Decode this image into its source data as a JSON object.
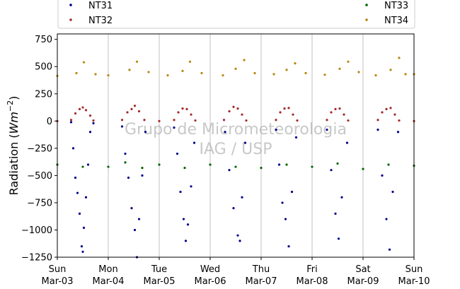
{
  "chart_data": {
    "type": "scatter",
    "title": "",
    "xlabel": "",
    "ylabel_prefix": "Radiation (",
    "ylabel_unit_base": "Wm",
    "ylabel_unit_exp": "−2",
    "ylabel_suffix": ")",
    "ylim": [
      -1250,
      800
    ],
    "yticks": [
      750,
      500,
      250,
      0,
      -250,
      -500,
      -750,
      -1000,
      -1250
    ],
    "ytick_labels": [
      "750",
      "500",
      "250",
      "0",
      "−250",
      "−500",
      "−750",
      "−1000",
      "−1250"
    ],
    "xlim": [
      "2019-03-03",
      "2019-03-10"
    ],
    "xticks": [
      {
        "day": "Sun",
        "date": "Mar-03"
      },
      {
        "day": "Mon",
        "date": "Mar-04"
      },
      {
        "day": "Tue",
        "date": "Mar-05"
      },
      {
        "day": "Wed",
        "date": "Mar-06"
      },
      {
        "day": "Thu",
        "date": "Mar-07"
      },
      {
        "day": "Fri",
        "date": "Mar-08"
      },
      {
        "day": "Sat",
        "date": "Mar-09"
      },
      {
        "day": "Sun",
        "date": "Mar-10"
      }
    ],
    "grid": "vertical",
    "legend_position": "top",
    "watermark": [
      "Grupo de Micrometeorologia",
      "IAG / USP"
    ],
    "series": [
      {
        "name": "NT31",
        "color": "#00008b",
        "points": [
          {
            "x": "2019-03-03T06:30",
            "y": -10
          },
          {
            "x": "2019-03-03T07:30",
            "y": -250
          },
          {
            "x": "2019-03-03T08:30",
            "y": -520
          },
          {
            "x": "2019-03-03T09:30",
            "y": -660
          },
          {
            "x": "2019-03-03T10:30",
            "y": -850
          },
          {
            "x": "2019-03-03T11:30",
            "y": -1150
          },
          {
            "x": "2019-03-03T12:00",
            "y": -1200
          },
          {
            "x": "2019-03-03T12:30",
            "y": -980
          },
          {
            "x": "2019-03-03T13:30",
            "y": -700
          },
          {
            "x": "2019-03-03T14:30",
            "y": -400
          },
          {
            "x": "2019-03-03T15:30",
            "y": -100
          },
          {
            "x": "2019-03-03T17:00",
            "y": -20
          },
          {
            "x": "2019-03-04T06:30",
            "y": -50
          },
          {
            "x": "2019-03-04T08:00",
            "y": -300
          },
          {
            "x": "2019-03-04T09:30",
            "y": -520
          },
          {
            "x": "2019-03-04T11:00",
            "y": -800
          },
          {
            "x": "2019-03-04T12:30",
            "y": -1000
          },
          {
            "x": "2019-03-04T13:30",
            "y": -1250
          },
          {
            "x": "2019-03-04T14:30",
            "y": -900
          },
          {
            "x": "2019-03-04T16:00",
            "y": -500
          },
          {
            "x": "2019-03-04T17:30",
            "y": -100
          },
          {
            "x": "2019-03-05T07:00",
            "y": -60
          },
          {
            "x": "2019-03-05T08:30",
            "y": -300
          },
          {
            "x": "2019-03-05T10:00",
            "y": -650
          },
          {
            "x": "2019-03-05T11:30",
            "y": -900
          },
          {
            "x": "2019-03-05T12:30",
            "y": -1100
          },
          {
            "x": "2019-03-05T13:30",
            "y": -950
          },
          {
            "x": "2019-03-05T15:00",
            "y": -600
          },
          {
            "x": "2019-03-05T16:30",
            "y": -200
          },
          {
            "x": "2019-03-06T07:00",
            "y": -100
          },
          {
            "x": "2019-03-06T09:00",
            "y": -450
          },
          {
            "x": "2019-03-06T11:00",
            "y": -800
          },
          {
            "x": "2019-03-06T13:00",
            "y": -1050
          },
          {
            "x": "2019-03-06T14:00",
            "y": -1100
          },
          {
            "x": "2019-03-06T15:00",
            "y": -700
          },
          {
            "x": "2019-03-06T16:30",
            "y": -200
          },
          {
            "x": "2019-03-07T07:00",
            "y": -80
          },
          {
            "x": "2019-03-07T08:30",
            "y": -400
          },
          {
            "x": "2019-03-07T10:00",
            "y": -750
          },
          {
            "x": "2019-03-07T11:30",
            "y": -900
          },
          {
            "x": "2019-03-07T13:00",
            "y": -1150
          },
          {
            "x": "2019-03-07T14:30",
            "y": -650
          },
          {
            "x": "2019-03-07T16:30",
            "y": -150
          },
          {
            "x": "2019-03-08T07:00",
            "y": -80
          },
          {
            "x": "2019-03-08T09:00",
            "y": -450
          },
          {
            "x": "2019-03-08T11:00",
            "y": -850
          },
          {
            "x": "2019-03-08T12:30",
            "y": -1080
          },
          {
            "x": "2019-03-08T14:00",
            "y": -700
          },
          {
            "x": "2019-03-08T16:30",
            "y": -200
          },
          {
            "x": "2019-03-09T07:00",
            "y": -80
          },
          {
            "x": "2019-03-09T09:00",
            "y": -500
          },
          {
            "x": "2019-03-09T11:00",
            "y": -900
          },
          {
            "x": "2019-03-09T12:30",
            "y": -1180
          },
          {
            "x": "2019-03-09T14:00",
            "y": -650
          },
          {
            "x": "2019-03-09T16:30",
            "y": -100
          }
        ]
      },
      {
        "name": "NT32",
        "color": "#a52a2a",
        "points": [
          {
            "x": "2019-03-03T00:00",
            "y": 0
          },
          {
            "x": "2019-03-03T06:30",
            "y": 10
          },
          {
            "x": "2019-03-03T08:30",
            "y": 70
          },
          {
            "x": "2019-03-03T10:30",
            "y": 110
          },
          {
            "x": "2019-03-03T12:00",
            "y": 125
          },
          {
            "x": "2019-03-03T13:30",
            "y": 100
          },
          {
            "x": "2019-03-03T15:30",
            "y": 50
          },
          {
            "x": "2019-03-03T17:00",
            "y": 5
          },
          {
            "x": "2019-03-04T06:30",
            "y": 10
          },
          {
            "x": "2019-03-04T09:00",
            "y": 80
          },
          {
            "x": "2019-03-04T11:00",
            "y": 110
          },
          {
            "x": "2019-03-04T12:30",
            "y": 140
          },
          {
            "x": "2019-03-04T14:30",
            "y": 90
          },
          {
            "x": "2019-03-04T17:00",
            "y": 10
          },
          {
            "x": "2019-03-05T00:00",
            "y": 0
          },
          {
            "x": "2019-03-05T07:00",
            "y": 10
          },
          {
            "x": "2019-03-05T09:00",
            "y": 80
          },
          {
            "x": "2019-03-05T11:00",
            "y": 115
          },
          {
            "x": "2019-03-05T13:00",
            "y": 110
          },
          {
            "x": "2019-03-05T15:00",
            "y": 60
          },
          {
            "x": "2019-03-05T17:00",
            "y": 5
          },
          {
            "x": "2019-03-06T06:30",
            "y": 10
          },
          {
            "x": "2019-03-06T09:00",
            "y": 90
          },
          {
            "x": "2019-03-06T11:00",
            "y": 130
          },
          {
            "x": "2019-03-06T13:00",
            "y": 115
          },
          {
            "x": "2019-03-06T15:00",
            "y": 60
          },
          {
            "x": "2019-03-06T17:00",
            "y": 5
          },
          {
            "x": "2019-03-07T07:00",
            "y": 10
          },
          {
            "x": "2019-03-07T09:00",
            "y": 80
          },
          {
            "x": "2019-03-07T11:00",
            "y": 115
          },
          {
            "x": "2019-03-07T13:00",
            "y": 120
          },
          {
            "x": "2019-03-07T15:00",
            "y": 60
          },
          {
            "x": "2019-03-07T17:00",
            "y": 5
          },
          {
            "x": "2019-03-08T07:00",
            "y": 10
          },
          {
            "x": "2019-03-08T09:00",
            "y": 80
          },
          {
            "x": "2019-03-08T11:00",
            "y": 110
          },
          {
            "x": "2019-03-08T13:00",
            "y": 115
          },
          {
            "x": "2019-03-08T15:00",
            "y": 60
          },
          {
            "x": "2019-03-08T17:00",
            "y": 5
          },
          {
            "x": "2019-03-09T07:00",
            "y": 10
          },
          {
            "x": "2019-03-09T09:00",
            "y": 80
          },
          {
            "x": "2019-03-09T11:00",
            "y": 110
          },
          {
            "x": "2019-03-09T13:00",
            "y": 120
          },
          {
            "x": "2019-03-09T15:00",
            "y": 60
          },
          {
            "x": "2019-03-09T17:00",
            "y": 5
          },
          {
            "x": "2019-03-10T00:00",
            "y": 0
          }
        ]
      },
      {
        "name": "NT33",
        "color": "#006400",
        "points": [
          {
            "x": "2019-03-03T00:00",
            "y": -400
          },
          {
            "x": "2019-03-03T12:00",
            "y": -420
          },
          {
            "x": "2019-03-04T00:00",
            "y": -420
          },
          {
            "x": "2019-03-04T08:00",
            "y": -380
          },
          {
            "x": "2019-03-04T16:00",
            "y": -430
          },
          {
            "x": "2019-03-05T00:00",
            "y": -400
          },
          {
            "x": "2019-03-05T12:00",
            "y": -430
          },
          {
            "x": "2019-03-06T00:00",
            "y": -400
          },
          {
            "x": "2019-03-06T12:00",
            "y": -420
          },
          {
            "x": "2019-03-07T00:00",
            "y": -430
          },
          {
            "x": "2019-03-07T12:00",
            "y": -400
          },
          {
            "x": "2019-03-08T00:00",
            "y": -420
          },
          {
            "x": "2019-03-08T12:00",
            "y": -390
          },
          {
            "x": "2019-03-09T00:00",
            "y": -440
          },
          {
            "x": "2019-03-09T12:00",
            "y": -400
          },
          {
            "x": "2019-03-10T00:00",
            "y": -410
          }
        ]
      },
      {
        "name": "NT34",
        "color": "#b8860b",
        "points": [
          {
            "x": "2019-03-03T00:00",
            "y": 415
          },
          {
            "x": "2019-03-03T09:00",
            "y": 440
          },
          {
            "x": "2019-03-03T12:30",
            "y": 540
          },
          {
            "x": "2019-03-03T18:00",
            "y": 430
          },
          {
            "x": "2019-03-04T00:00",
            "y": 420
          },
          {
            "x": "2019-03-04T10:00",
            "y": 470
          },
          {
            "x": "2019-03-04T13:30",
            "y": 545
          },
          {
            "x": "2019-03-04T19:00",
            "y": 450
          },
          {
            "x": "2019-03-05T04:00",
            "y": 420
          },
          {
            "x": "2019-03-05T11:00",
            "y": 460
          },
          {
            "x": "2019-03-05T14:30",
            "y": 545
          },
          {
            "x": "2019-03-05T20:00",
            "y": 440
          },
          {
            "x": "2019-03-06T06:00",
            "y": 420
          },
          {
            "x": "2019-03-06T12:00",
            "y": 480
          },
          {
            "x": "2019-03-06T16:00",
            "y": 560
          },
          {
            "x": "2019-03-06T21:00",
            "y": 440
          },
          {
            "x": "2019-03-07T06:00",
            "y": 430
          },
          {
            "x": "2019-03-07T12:00",
            "y": 470
          },
          {
            "x": "2019-03-07T16:00",
            "y": 530
          },
          {
            "x": "2019-03-07T21:00",
            "y": 440
          },
          {
            "x": "2019-03-08T06:00",
            "y": 425
          },
          {
            "x": "2019-03-08T13:00",
            "y": 480
          },
          {
            "x": "2019-03-08T17:00",
            "y": 545
          },
          {
            "x": "2019-03-08T22:00",
            "y": 450
          },
          {
            "x": "2019-03-09T06:00",
            "y": 420
          },
          {
            "x": "2019-03-09T13:00",
            "y": 470
          },
          {
            "x": "2019-03-09T17:00",
            "y": 580
          },
          {
            "x": "2019-03-09T20:00",
            "y": 430
          },
          {
            "x": "2019-03-10T00:00",
            "y": 430
          }
        ]
      }
    ]
  }
}
